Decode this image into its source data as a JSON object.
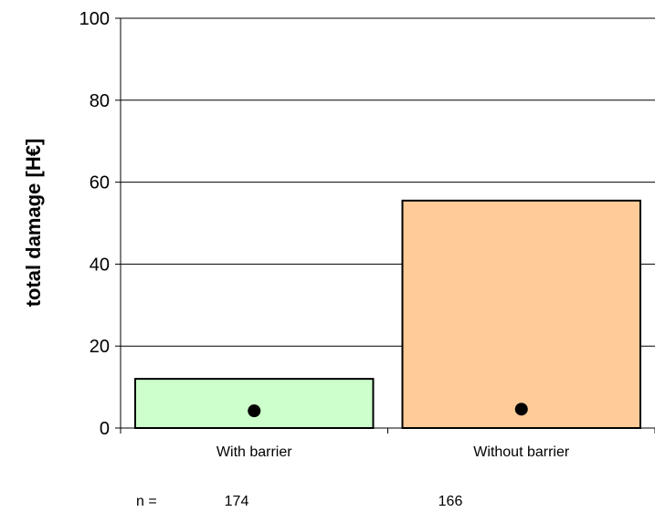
{
  "chart_data": {
    "type": "bar",
    "categories": [
      "With barrier",
      "Without barrier"
    ],
    "values": [
      12,
      55.5
    ],
    "markers": [
      4.2,
      4.6
    ],
    "ylabel": "total damage [H€]",
    "ylim": [
      0,
      100
    ],
    "yticks": [
      "0",
      "20",
      "40",
      "60",
      "80",
      "100"
    ],
    "grid": true,
    "n_prefix": "n =",
    "n_values": [
      "174",
      "166"
    ],
    "colors": [
      "#ccffcc",
      "#ffcc99"
    ],
    "bar_edge": "#000000",
    "marker_color": "#000000"
  }
}
